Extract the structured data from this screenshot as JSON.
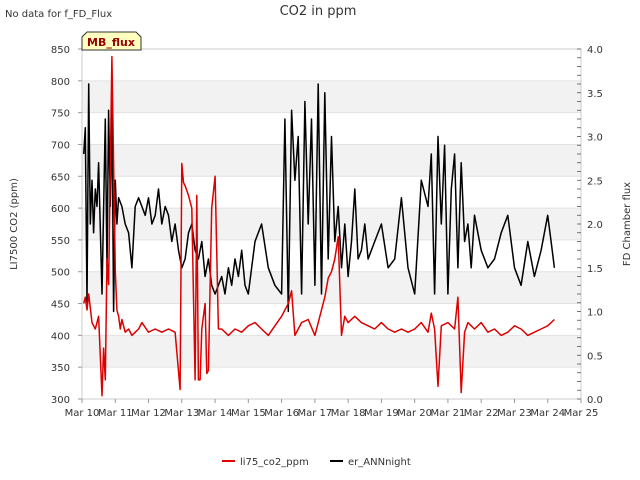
{
  "header": {
    "nodata_text": "No data for f_FD_Flux",
    "title": "CO2 in ppm",
    "badge": "MB_flux"
  },
  "legend": [
    {
      "label": "li75_co2_ppm",
      "color": "#dd0000"
    },
    {
      "label": "er_ANNnight",
      "color": "#000000"
    }
  ],
  "chart_data": {
    "type": "line",
    "title": "CO2 in ppm",
    "xlabel": "",
    "ylabel": "LI7500 CO2 (ppm)",
    "y2label": "FD Chamber flux",
    "x_ticks": [
      "Mar 10",
      "Mar 11",
      "Mar 12",
      "Mar 13",
      "Mar 14",
      "Mar 15",
      "Mar 16",
      "Mar 17",
      "Mar 18",
      "Mar 19",
      "Mar 20",
      "Mar 21",
      "Mar 22",
      "Mar 23",
      "Mar 24",
      "Mar 25"
    ],
    "xlim": [
      0,
      15
    ],
    "ylim": [
      300,
      850
    ],
    "y_ticks": [
      300,
      350,
      400,
      450,
      500,
      550,
      600,
      650,
      700,
      750,
      800,
      850
    ],
    "y2lim": [
      0,
      4
    ],
    "y2_ticks": [
      "0.0",
      "0.5",
      "1.0",
      "1.5",
      "2.0",
      "2.5",
      "3.0",
      "3.5",
      "4.0"
    ],
    "grid": "horizontal bands",
    "legend_position": "bottom-center",
    "series": [
      {
        "name": "li75_co2_ppm",
        "axis": "left",
        "color": "#dd0000",
        "x": [
          0.05,
          0.1,
          0.15,
          0.2,
          0.3,
          0.4,
          0.5,
          0.6,
          0.65,
          0.7,
          0.75,
          0.8,
          0.9,
          1.0,
          1.05,
          1.1,
          1.15,
          1.2,
          1.3,
          1.4,
          1.5,
          1.6,
          1.7,
          1.8,
          2.0,
          2.2,
          2.4,
          2.6,
          2.8,
          2.95,
          3.0,
          3.05,
          3.1,
          3.2,
          3.3,
          3.4,
          3.45,
          3.5,
          3.55,
          3.6,
          3.7,
          3.75,
          3.8,
          3.9,
          4.0,
          4.1,
          4.2,
          4.3,
          4.4,
          4.6,
          4.8,
          5.0,
          5.2,
          5.4,
          5.6,
          5.8,
          6.0,
          6.2,
          6.3,
          6.4,
          6.6,
          6.8,
          7.0,
          7.2,
          7.3,
          7.4,
          7.5,
          7.6,
          7.7,
          7.8,
          7.9,
          8.0,
          8.2,
          8.4,
          8.6,
          8.8,
          9.0,
          9.2,
          9.4,
          9.6,
          9.8,
          10.0,
          10.2,
          10.4,
          10.5,
          10.6,
          10.7,
          10.8,
          11.0,
          11.2,
          11.3,
          11.4,
          11.5,
          11.6,
          11.8,
          12.0,
          12.2,
          12.4,
          12.6,
          12.8,
          13.0,
          13.2,
          13.4,
          13.6,
          13.8,
          14.0,
          14.2
        ],
        "y": [
          450,
          460,
          440,
          465,
          420,
          410,
          430,
          305,
          380,
          330,
          520,
          480,
          838,
          500,
          440,
          430,
          410,
          425,
          405,
          410,
          400,
          405,
          410,
          420,
          405,
          410,
          405,
          410,
          405,
          315,
          670,
          640,
          635,
          620,
          600,
          330,
          620,
          330,
          330,
          410,
          450,
          340,
          345,
          600,
          650,
          410,
          410,
          405,
          400,
          410,
          405,
          415,
          420,
          410,
          400,
          415,
          430,
          450,
          470,
          400,
          420,
          425,
          400,
          440,
          460,
          490,
          500,
          520,
          555,
          400,
          430,
          420,
          430,
          420,
          415,
          410,
          420,
          410,
          405,
          410,
          405,
          410,
          420,
          405,
          435,
          410,
          320,
          415,
          420,
          410,
          460,
          310,
          405,
          420,
          410,
          420,
          405,
          410,
          400,
          405,
          415,
          410,
          400,
          405,
          410,
          415,
          425
        ]
      },
      {
        "name": "er_ANNnight",
        "axis": "right",
        "color": "#000000",
        "x": [
          0.05,
          0.1,
          0.15,
          0.2,
          0.25,
          0.3,
          0.35,
          0.4,
          0.45,
          0.5,
          0.6,
          0.7,
          0.75,
          0.8,
          0.85,
          0.9,
          0.95,
          1.0,
          1.05,
          1.1,
          1.2,
          1.3,
          1.4,
          1.5,
          1.6,
          1.7,
          1.8,
          1.9,
          2.0,
          2.1,
          2.2,
          2.3,
          2.4,
          2.5,
          2.6,
          2.7,
          2.8,
          2.9,
          3.0,
          3.1,
          3.2,
          3.3,
          3.4,
          3.5,
          3.6,
          3.7,
          3.8,
          3.9,
          4.0,
          4.1,
          4.2,
          4.3,
          4.4,
          4.5,
          4.6,
          4.7,
          4.8,
          4.9,
          5.0,
          5.2,
          5.4,
          5.6,
          5.8,
          6.0,
          6.1,
          6.2,
          6.3,
          6.4,
          6.5,
          6.6,
          6.7,
          6.8,
          6.9,
          7.0,
          7.1,
          7.2,
          7.3,
          7.4,
          7.5,
          7.6,
          7.7,
          7.8,
          7.9,
          8.0,
          8.1,
          8.2,
          8.3,
          8.4,
          8.5,
          8.6,
          8.8,
          9.0,
          9.2,
          9.4,
          9.6,
          9.8,
          10.0,
          10.2,
          10.4,
          10.5,
          10.6,
          10.7,
          10.8,
          10.9,
          11.0,
          11.1,
          11.2,
          11.3,
          11.4,
          11.5,
          11.6,
          11.7,
          11.8,
          12.0,
          12.2,
          12.4,
          12.6,
          12.8,
          13.0,
          13.2,
          13.4,
          13.6,
          13.8,
          14.0,
          14.1,
          14.2
        ],
        "y": [
          2.8,
          3.1,
          1.1,
          3.6,
          2.0,
          2.5,
          1.9,
          2.4,
          2.2,
          2.7,
          1.2,
          3.2,
          1.5,
          3.3,
          2.2,
          3.4,
          1.0,
          2.5,
          2.0,
          2.3,
          2.2,
          2.0,
          1.9,
          1.5,
          2.2,
          2.3,
          2.2,
          2.1,
          2.3,
          2.0,
          2.1,
          2.4,
          2.0,
          2.2,
          2.1,
          1.8,
          2.0,
          1.7,
          1.5,
          1.6,
          1.9,
          2.0,
          1.7,
          1.6,
          1.8,
          1.4,
          1.6,
          1.3,
          1.2,
          1.3,
          1.4,
          1.2,
          1.5,
          1.3,
          1.6,
          1.4,
          1.7,
          1.3,
          1.2,
          1.8,
          2.0,
          1.5,
          1.3,
          1.2,
          3.2,
          1.0,
          3.3,
          2.5,
          3.0,
          1.2,
          3.4,
          2.0,
          3.2,
          1.3,
          3.6,
          1.2,
          3.5,
          1.6,
          3.0,
          1.8,
          2.2,
          1.5,
          2.0,
          1.4,
          1.8,
          2.4,
          1.6,
          1.7,
          2.0,
          1.6,
          1.8,
          2.0,
          1.5,
          1.6,
          2.3,
          1.5,
          1.2,
          2.5,
          2.2,
          2.8,
          1.2,
          3.0,
          2.0,
          2.9,
          1.2,
          2.4,
          2.8,
          1.5,
          2.7,
          1.8,
          2.0,
          1.5,
          2.1,
          1.7,
          1.5,
          1.6,
          1.9,
          2.1,
          1.5,
          1.3,
          1.8,
          1.4,
          1.7,
          2.1,
          1.8,
          1.5
        ]
      }
    ]
  }
}
